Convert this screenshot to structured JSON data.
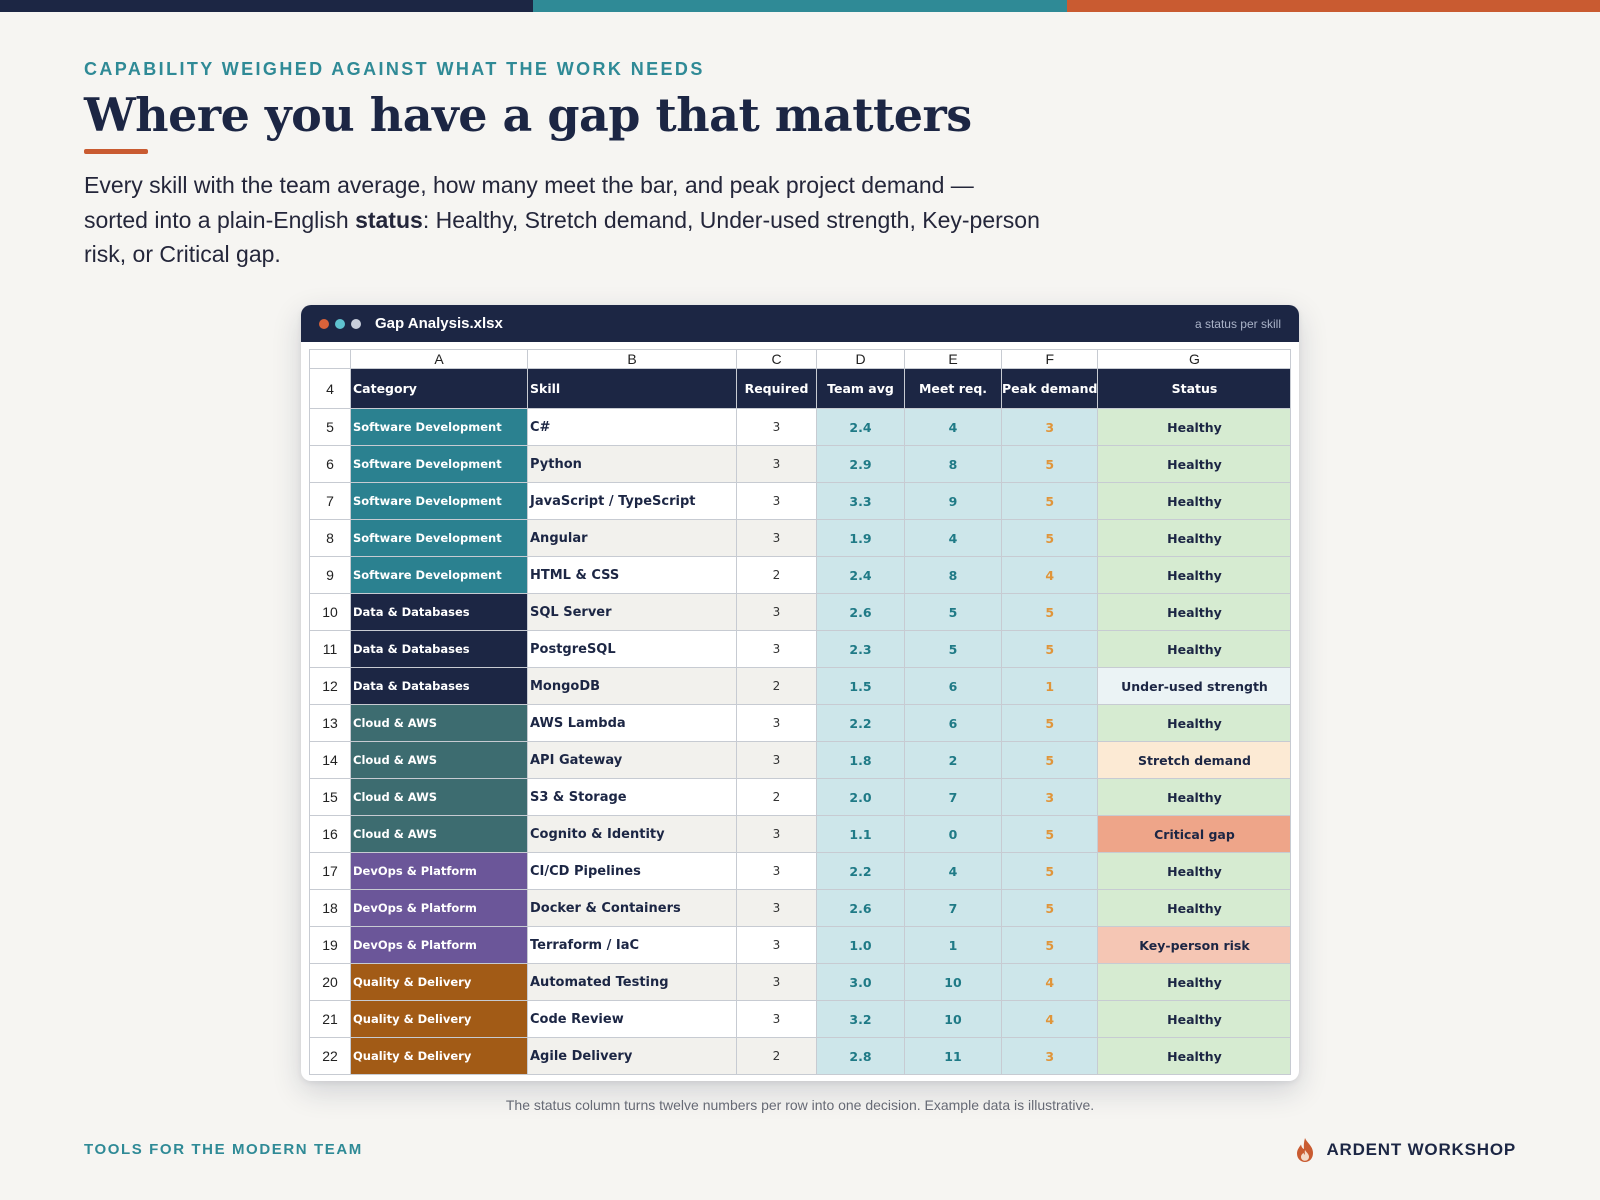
{
  "colors": {
    "navy": "#1c2644",
    "teal": "#2f8a96",
    "orange": "#c95b31",
    "category": {
      "Software Development": "#2b8190",
      "Data & Databases": "#1c2644",
      "Cloud & AWS": "#3d6c70",
      "DevOps & Platform": "#6b5699",
      "Quality & Delivery": "#a25b16"
    },
    "status": {
      "Healthy": "#d6ebd1",
      "Under-used strength": "#ebf3f5",
      "Stretch demand": "#fcead4",
      "Critical gap": "#eea589",
      "Key-person risk": "#f5c6b4"
    }
  },
  "header": {
    "eyebrow": "CAPABILITY WEIGHED AGAINST WHAT THE WORK NEEDS",
    "title": "Where you have a gap that matters",
    "lede_before": "Every skill with the team average, how many meet the bar, and peak project demand — sorted into a plain-English ",
    "lede_bold": "status",
    "lede_after": ": Healthy, Stretch demand, Under-used strength, Key-person risk, or Critical gap."
  },
  "window": {
    "title": "Gap Analysis.xlsx",
    "tag": "a status per skill",
    "icons": [
      "close-dot-icon",
      "minimize-dot-icon",
      "maximize-dot-icon"
    ]
  },
  "sheet": {
    "column_letters": [
      "A",
      "B",
      "C",
      "D",
      "E",
      "F",
      "G"
    ],
    "header_row_number": "4",
    "headers": [
      "Category",
      "Skill",
      "Required",
      "Team avg",
      "Meet req.",
      "Peak demand",
      "Status"
    ],
    "rows": [
      {
        "row": "5",
        "category": "Software Development",
        "skill": "C#",
        "required": "3",
        "team_avg": "2.4",
        "meet": "4",
        "peak": "3",
        "status": "Healthy"
      },
      {
        "row": "6",
        "category": "Software Development",
        "skill": "Python",
        "required": "3",
        "team_avg": "2.9",
        "meet": "8",
        "peak": "5",
        "status": "Healthy"
      },
      {
        "row": "7",
        "category": "Software Development",
        "skill": "JavaScript / TypeScript",
        "required": "3",
        "team_avg": "3.3",
        "meet": "9",
        "peak": "5",
        "status": "Healthy"
      },
      {
        "row": "8",
        "category": "Software Development",
        "skill": "Angular",
        "required": "3",
        "team_avg": "1.9",
        "meet": "4",
        "peak": "5",
        "status": "Healthy"
      },
      {
        "row": "9",
        "category": "Software Development",
        "skill": "HTML & CSS",
        "required": "2",
        "team_avg": "2.4",
        "meet": "8",
        "peak": "4",
        "status": "Healthy"
      },
      {
        "row": "10",
        "category": "Data & Databases",
        "skill": "SQL Server",
        "required": "3",
        "team_avg": "2.6",
        "meet": "5",
        "peak": "5",
        "status": "Healthy"
      },
      {
        "row": "11",
        "category": "Data & Databases",
        "skill": "PostgreSQL",
        "required": "3",
        "team_avg": "2.3",
        "meet": "5",
        "peak": "5",
        "status": "Healthy"
      },
      {
        "row": "12",
        "category": "Data & Databases",
        "skill": "MongoDB",
        "required": "2",
        "team_avg": "1.5",
        "meet": "6",
        "peak": "1",
        "status": "Under-used strength"
      },
      {
        "row": "13",
        "category": "Cloud & AWS",
        "skill": "AWS Lambda",
        "required": "3",
        "team_avg": "2.2",
        "meet": "6",
        "peak": "5",
        "status": "Healthy"
      },
      {
        "row": "14",
        "category": "Cloud & AWS",
        "skill": "API Gateway",
        "required": "3",
        "team_avg": "1.8",
        "meet": "2",
        "peak": "5",
        "status": "Stretch demand"
      },
      {
        "row": "15",
        "category": "Cloud & AWS",
        "skill": "S3 & Storage",
        "required": "2",
        "team_avg": "2.0",
        "meet": "7",
        "peak": "3",
        "status": "Healthy"
      },
      {
        "row": "16",
        "category": "Cloud & AWS",
        "skill": "Cognito & Identity",
        "required": "3",
        "team_avg": "1.1",
        "meet": "0",
        "peak": "5",
        "status": "Critical gap"
      },
      {
        "row": "17",
        "category": "DevOps & Platform",
        "skill": "CI/CD Pipelines",
        "required": "3",
        "team_avg": "2.2",
        "meet": "4",
        "peak": "5",
        "status": "Healthy"
      },
      {
        "row": "18",
        "category": "DevOps & Platform",
        "skill": "Docker & Containers",
        "required": "3",
        "team_avg": "2.6",
        "meet": "7",
        "peak": "5",
        "status": "Healthy"
      },
      {
        "row": "19",
        "category": "DevOps & Platform",
        "skill": "Terraform / IaC",
        "required": "3",
        "team_avg": "1.0",
        "meet": "1",
        "peak": "5",
        "status": "Key-person risk"
      },
      {
        "row": "20",
        "category": "Quality & Delivery",
        "skill": "Automated Testing",
        "required": "3",
        "team_avg": "3.0",
        "meet": "10",
        "peak": "4",
        "status": "Healthy"
      },
      {
        "row": "21",
        "category": "Quality & Delivery",
        "skill": "Code Review",
        "required": "3",
        "team_avg": "3.2",
        "meet": "10",
        "peak": "4",
        "status": "Healthy"
      },
      {
        "row": "22",
        "category": "Quality & Delivery",
        "skill": "Agile Delivery",
        "required": "2",
        "team_avg": "2.8",
        "meet": "11",
        "peak": "3",
        "status": "Healthy"
      }
    ]
  },
  "caption": "The status column turns twelve numbers per row into one decision. Example data is illustrative.",
  "footer": {
    "left": "TOOLS FOR THE MODERN TEAM",
    "brand": "ARDENT WORKSHOP",
    "brand_icon": "flame-icon"
  }
}
